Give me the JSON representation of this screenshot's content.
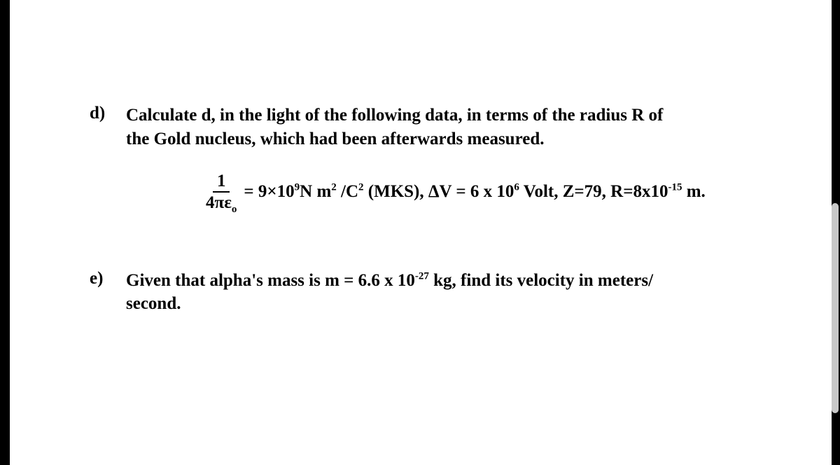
{
  "colors": {
    "page_bg": "#ffffff",
    "canvas_bg": "#000000",
    "text": "#000000",
    "scrollbar_thumb": "#c8c8c8"
  },
  "typography": {
    "family": "Times New Roman",
    "body_pt": 25,
    "weight": "bold"
  },
  "items": {
    "d": {
      "marker": "d)",
      "line1": "Calculate d, in the light of the following data, in terms of the radius R of",
      "line2": "the Gold nucleus, which had been afterwards measured.",
      "equation": {
        "fraction_num": "1",
        "fraction_den_html": "4πε",
        "fraction_den_sub": "o",
        "eq_text_before_exp": " = 9×10",
        "exp_9": "9",
        "units_1": "N m",
        "sq_2a": "2",
        "slash": " /C",
        "sq_2b": "2",
        "mks": " (MKS),  ΔV = 6 x 10",
        "exp_6": "6",
        "after_dv": " Volt, Z=79, R=8x10",
        "exp_neg15": "-15",
        "tail": " m."
      }
    },
    "e": {
      "marker": "e)",
      "line1_a": "Given that alpha's mass is m = 6.6 x 10",
      "line1_exp": "-27",
      "line1_b": " kg, find its velocity in meters/",
      "line2": "second."
    }
  }
}
